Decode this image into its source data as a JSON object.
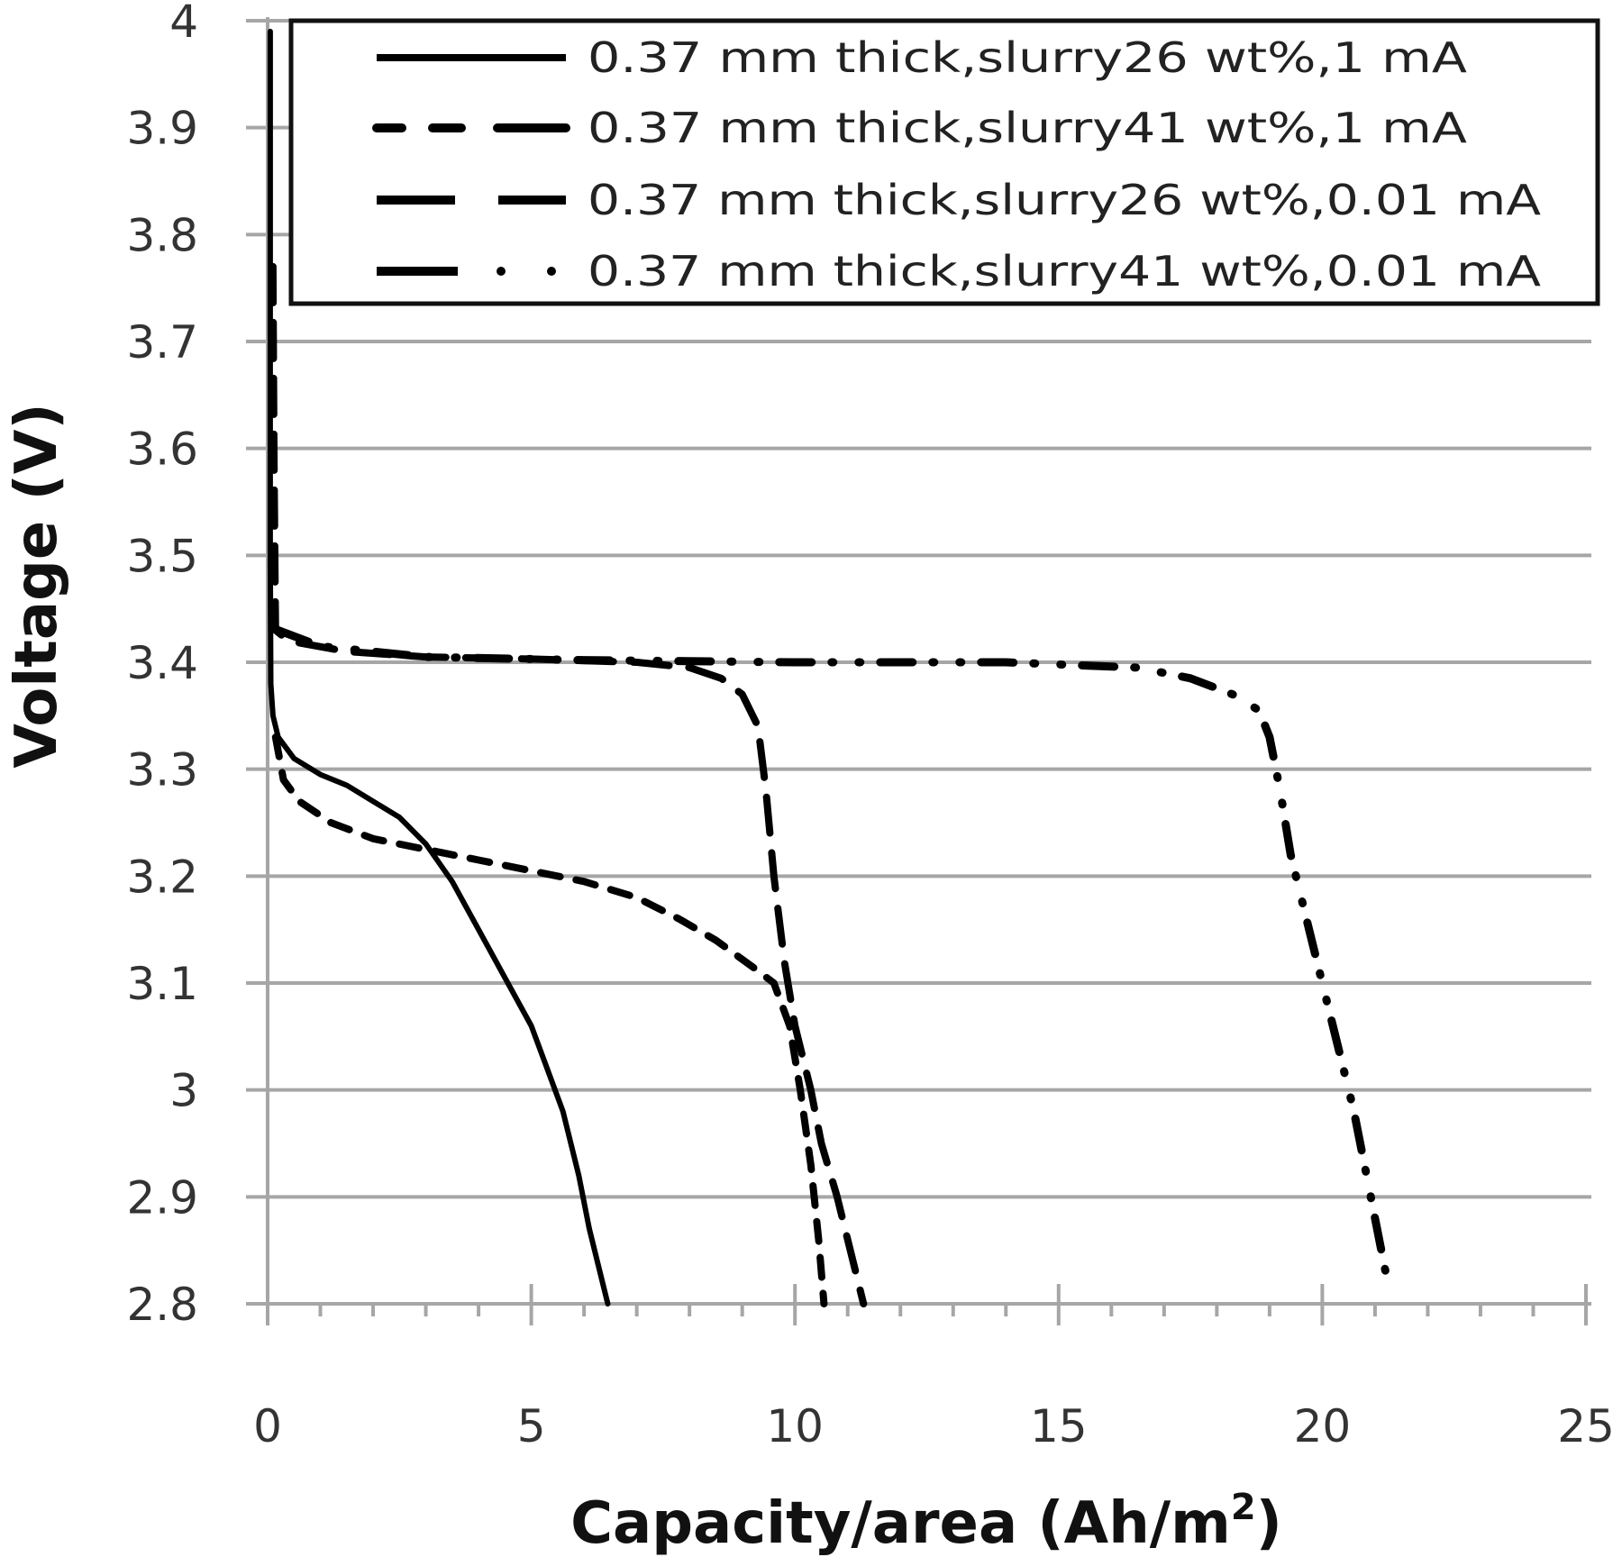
{
  "chart_data": {
    "type": "line",
    "title": "",
    "xlabel": "Capacity/area (Ah/m²)",
    "xlabel_base": "Capacity/area (Ah/m",
    "xlabel_sup": "2",
    "xlabel_end": ")",
    "ylabel": "Voltage (V)",
    "xlim": [
      0,
      25
    ],
    "ylim": [
      2.8,
      4.0
    ],
    "x_ticks": [
      0,
      5,
      10,
      15,
      20,
      25
    ],
    "x_tick_labels": [
      "0",
      "5",
      "10",
      "15",
      "20",
      "25"
    ],
    "x_minor_step": 1,
    "y_ticks": [
      2.8,
      2.9,
      3.0,
      3.1,
      3.2,
      3.3,
      3.4,
      3.5,
      3.6,
      3.7,
      3.8,
      3.9,
      4.0
    ],
    "y_tick_labels": [
      "2.8",
      "2.9",
      "3",
      "3.1",
      "3.2",
      "3.3",
      "3.4",
      "3.5",
      "3.6",
      "3.7",
      "3.8",
      "3.9",
      "4"
    ],
    "grid": {
      "horizontal": true,
      "vertical": false,
      "color": "#a6a6a6"
    },
    "legend_position": "top-right inside plot",
    "series": [
      {
        "name": "0.37 mm thick, slurry 26 wt%, 1 mA",
        "label": "0.37 mm thick,slurry26 wt%,1 mA",
        "style": "solid",
        "color": "#000000",
        "points": [
          [
            0.05,
            3.99
          ],
          [
            0.05,
            3.7
          ],
          [
            0.05,
            3.5
          ],
          [
            0.06,
            3.38
          ],
          [
            0.1,
            3.35
          ],
          [
            0.2,
            3.33
          ],
          [
            0.5,
            3.31
          ],
          [
            1.0,
            3.295
          ],
          [
            1.5,
            3.285
          ],
          [
            2.0,
            3.27
          ],
          [
            2.5,
            3.255
          ],
          [
            3.0,
            3.23
          ],
          [
            3.5,
            3.195
          ],
          [
            4.0,
            3.15
          ],
          [
            4.5,
            3.105
          ],
          [
            5.0,
            3.06
          ],
          [
            5.3,
            3.02
          ],
          [
            5.6,
            2.98
          ],
          [
            5.9,
            2.92
          ],
          [
            6.1,
            2.87
          ],
          [
            6.3,
            2.83
          ],
          [
            6.45,
            2.8
          ]
        ]
      },
      {
        "name": "0.37 mm thick, slurry 41 wt%, 1 mA",
        "label": "0.37 mm thick,slurry41 wt%,1 mA",
        "style": "dashed",
        "color": "#000000",
        "points": [
          [
            0.15,
            3.33
          ],
          [
            0.3,
            3.29
          ],
          [
            0.6,
            3.27
          ],
          [
            1.2,
            3.25
          ],
          [
            2.0,
            3.235
          ],
          [
            3.0,
            3.225
          ],
          [
            4.0,
            3.215
          ],
          [
            5.0,
            3.205
          ],
          [
            6.0,
            3.195
          ],
          [
            7.0,
            3.18
          ],
          [
            7.8,
            3.16
          ],
          [
            8.5,
            3.14
          ],
          [
            9.2,
            3.115
          ],
          [
            9.6,
            3.1
          ],
          [
            9.9,
            3.06
          ],
          [
            10.1,
            3.0
          ],
          [
            10.3,
            2.93
          ],
          [
            10.45,
            2.86
          ],
          [
            10.55,
            2.8
          ]
        ]
      },
      {
        "name": "0.37 mm thick, slurry 26 wt%, 0.01 mA",
        "label": "0.37 mm thick,slurry26 wt%,0.01 mA",
        "style": "long-dash",
        "color": "#000000",
        "points": [
          [
            0.1,
            3.77
          ],
          [
            0.12,
            3.6
          ],
          [
            0.14,
            3.48
          ],
          [
            0.15,
            3.43
          ],
          [
            0.4,
            3.42
          ],
          [
            1.5,
            3.41
          ],
          [
            3.0,
            3.405
          ],
          [
            5.0,
            3.403
          ],
          [
            7.0,
            3.4
          ],
          [
            8.0,
            3.395
          ],
          [
            8.6,
            3.385
          ],
          [
            9.0,
            3.37
          ],
          [
            9.3,
            3.34
          ],
          [
            9.45,
            3.28
          ],
          [
            9.6,
            3.2
          ],
          [
            9.8,
            3.12
          ],
          [
            10.0,
            3.06
          ],
          [
            10.3,
            3.0
          ],
          [
            10.5,
            2.95
          ],
          [
            10.8,
            2.9
          ],
          [
            11.0,
            2.86
          ],
          [
            11.3,
            2.8
          ]
        ]
      },
      {
        "name": "0.37 mm thick, slurry 41 wt%, 0.01 mA",
        "label": "0.37 mm thick,slurry41 wt%,0.01 mA",
        "style": "dash-dot-dot",
        "color": "#000000",
        "points": [
          [
            0.2,
            3.43
          ],
          [
            1.0,
            3.415
          ],
          [
            3.0,
            3.405
          ],
          [
            6.0,
            3.402
          ],
          [
            10.0,
            3.4
          ],
          [
            12.0,
            3.4
          ],
          [
            14.0,
            3.4
          ],
          [
            15.5,
            3.397
          ],
          [
            16.5,
            3.395
          ],
          [
            17.5,
            3.385
          ],
          [
            18.3,
            3.37
          ],
          [
            18.8,
            3.355
          ],
          [
            19.0,
            3.33
          ],
          [
            19.2,
            3.28
          ],
          [
            19.4,
            3.22
          ],
          [
            19.7,
            3.16
          ],
          [
            20.0,
            3.1
          ],
          [
            20.3,
            3.04
          ],
          [
            20.6,
            2.98
          ],
          [
            20.8,
            2.93
          ],
          [
            21.0,
            2.88
          ],
          [
            21.2,
            2.83
          ]
        ]
      }
    ]
  }
}
